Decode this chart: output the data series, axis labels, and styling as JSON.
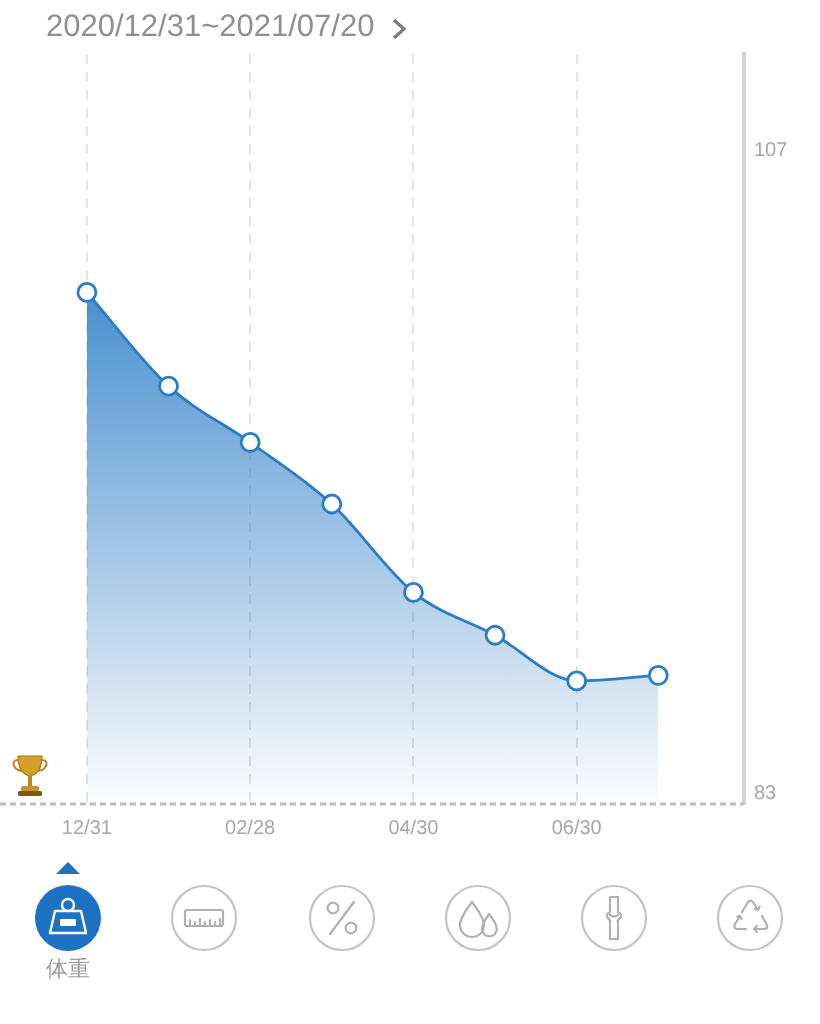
{
  "chart_data": {
    "type": "area",
    "title": "2020/12/31~2021/07/20",
    "categories": [
      "12/31",
      null,
      "02/28",
      null,
      "04/30",
      null,
      "06/30",
      null
    ],
    "values": [
      101.7,
      98.2,
      96.1,
      93.8,
      90.5,
      88.9,
      87.2,
      87.4
    ],
    "color": "#2a7cc7",
    "ylim": [
      82.6,
      110.6
    ],
    "yticks": [
      83,
      107
    ],
    "grid": "x",
    "marker": "circle",
    "annotations": [
      "体重"
    ]
  }
}
